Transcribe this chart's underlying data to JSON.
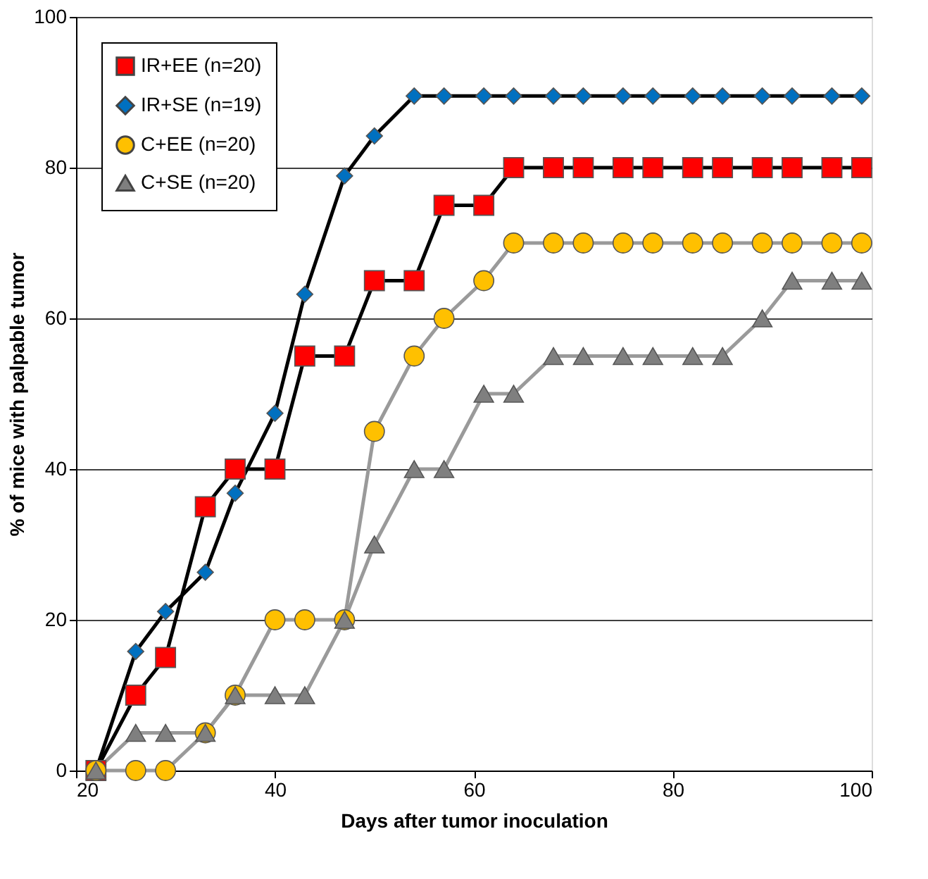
{
  "chart_data": {
    "type": "line",
    "xlabel": "Days after tumor inoculation",
    "ylabel": "% of mice with palpable tumor",
    "x": [
      22,
      26,
      29,
      33,
      36,
      40,
      43,
      47,
      50,
      54,
      57,
      61,
      64,
      68,
      71,
      75,
      78,
      82,
      85,
      89,
      92,
      96,
      99
    ],
    "series": [
      {
        "name": "IR+EE (n=20)",
        "color": "#ff0000",
        "marker": "square",
        "values": [
          0,
          10,
          15,
          35,
          40,
          40,
          55,
          55,
          65,
          65,
          75,
          75,
          80,
          80,
          80,
          80,
          80,
          80,
          80,
          80,
          80,
          80,
          80
        ]
      },
      {
        "name": "IR+SE (n=19)",
        "color": "#0070c0",
        "marker": "diamond",
        "values": [
          0,
          15.8,
          21.1,
          26.3,
          36.8,
          47.4,
          63.2,
          78.9,
          84.2,
          89.5,
          89.5,
          89.5,
          89.5,
          89.5,
          89.5,
          89.5,
          89.5,
          89.5,
          89.5,
          89.5,
          89.5,
          89.5,
          89.5
        ]
      },
      {
        "name": "C+EE (n=20)",
        "color": "#ffc000",
        "marker": "circle",
        "values": [
          0,
          0,
          0,
          5,
          10,
          20,
          20,
          20,
          45,
          55,
          60,
          65,
          70,
          70,
          70,
          70,
          70,
          70,
          70,
          70,
          70,
          70,
          70
        ]
      },
      {
        "name": "C+SE (n=20)",
        "color": "#7f7f7f",
        "marker": "triangle",
        "values": [
          0,
          5,
          5,
          5,
          10,
          10,
          10,
          20,
          30,
          40,
          40,
          50,
          50,
          55,
          55,
          55,
          55,
          55,
          55,
          60,
          65,
          65,
          65
        ]
      }
    ],
    "xlim": [
      20,
      100
    ],
    "xticks": [
      20,
      40,
      60,
      80,
      100
    ],
    "ylim": [
      0,
      100
    ],
    "yticks": [
      0,
      20,
      40,
      60,
      80,
      100
    ],
    "grid": "y",
    "legend": "top left",
    "line_style": "solid"
  }
}
